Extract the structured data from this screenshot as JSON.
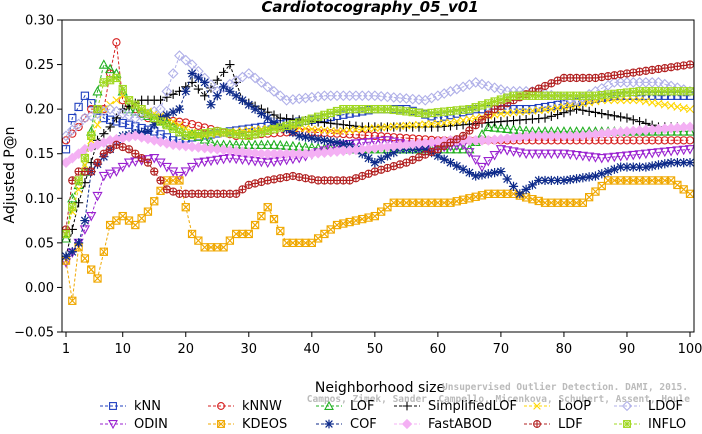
{
  "chart_data": {
    "type": "line",
    "title": "Cardiotocography_05_v01",
    "xlabel": "Neighborhood size",
    "ylabel": "Adjusted P@n",
    "xlim": [
      1,
      100
    ],
    "ylim": [
      -0.05,
      0.3
    ],
    "x_ticks": [
      1,
      10,
      20,
      30,
      40,
      50,
      60,
      70,
      80,
      90,
      100
    ],
    "y_ticks": [
      -0.05,
      0.0,
      0.05,
      0.1,
      0.15,
      0.2,
      0.25,
      0.3
    ],
    "y_tick_labels": [
      "−0.05",
      "0.00",
      "0.05",
      "0.10",
      "0.15",
      "0.20",
      "0.25",
      "0.30"
    ],
    "grid": false,
    "legend_position": "bottom",
    "credit_lines": [
      "Campos, Zimek, Sander, Campello, Micenkova, Schubert, Assent, Houle",
      "Unsupervised Outlier Detection. DAMI, 2015."
    ],
    "series": [
      {
        "name": "kNN",
        "color": "#1f3fbf",
        "marker": "square",
        "knots": [
          [
            1,
            0.155
          ],
          [
            2,
            0.19
          ],
          [
            4,
            0.215
          ],
          [
            7,
            0.19
          ],
          [
            15,
            0.175
          ],
          [
            18,
            0.165
          ],
          [
            27,
            0.175
          ],
          [
            32,
            0.18
          ],
          [
            42,
            0.19
          ],
          [
            50,
            0.2
          ],
          [
            55,
            0.2
          ],
          [
            60,
            0.19
          ],
          [
            66,
            0.2
          ],
          [
            75,
            0.2
          ],
          [
            88,
            0.215
          ],
          [
            100,
            0.215
          ]
        ]
      },
      {
        "name": "kNNW",
        "color": "#d62020",
        "marker": "circle",
        "knots": [
          [
            1,
            0.165
          ],
          [
            3,
            0.18
          ],
          [
            5,
            0.2
          ],
          [
            7,
            0.2
          ],
          [
            8,
            0.24
          ],
          [
            9,
            0.275
          ],
          [
            10,
            0.21
          ],
          [
            14,
            0.19
          ],
          [
            20,
            0.185
          ],
          [
            28,
            0.17
          ],
          [
            38,
            0.175
          ],
          [
            50,
            0.17
          ],
          [
            60,
            0.165
          ],
          [
            75,
            0.165
          ],
          [
            90,
            0.165
          ],
          [
            100,
            0.165
          ]
        ]
      },
      {
        "name": "LOF",
        "color": "#22b022",
        "marker": "triangle",
        "knots": [
          [
            1,
            0.055
          ],
          [
            2,
            0.1
          ],
          [
            4,
            0.13
          ],
          [
            6,
            0.22
          ],
          [
            7,
            0.25
          ],
          [
            9,
            0.24
          ],
          [
            11,
            0.2
          ],
          [
            15,
            0.19
          ],
          [
            20,
            0.175
          ],
          [
            25,
            0.16
          ],
          [
            34,
            0.16
          ],
          [
            44,
            0.155
          ],
          [
            55,
            0.155
          ],
          [
            65,
            0.155
          ],
          [
            68,
            0.18
          ],
          [
            75,
            0.175
          ],
          [
            85,
            0.175
          ],
          [
            100,
            0.175
          ]
        ]
      },
      {
        "name": "SimplifiedLOF",
        "color": "#000000",
        "marker": "plus",
        "knots": [
          [
            1,
            0.035
          ],
          [
            3,
            0.095
          ],
          [
            5,
            0.14
          ],
          [
            6,
            0.165
          ],
          [
            8,
            0.18
          ],
          [
            10,
            0.2
          ],
          [
            13,
            0.21
          ],
          [
            16,
            0.21
          ],
          [
            19,
            0.22
          ],
          [
            21,
            0.23
          ],
          [
            23,
            0.215
          ],
          [
            27,
            0.25
          ],
          [
            29,
            0.21
          ],
          [
            32,
            0.2
          ],
          [
            35,
            0.19
          ],
          [
            42,
            0.185
          ],
          [
            48,
            0.18
          ],
          [
            55,
            0.18
          ],
          [
            60,
            0.18
          ],
          [
            68,
            0.185
          ],
          [
            77,
            0.19
          ],
          [
            82,
            0.2
          ],
          [
            90,
            0.19
          ],
          [
            95,
            0.18
          ],
          [
            100,
            0.18
          ]
        ]
      },
      {
        "name": "LoOP",
        "color": "#ffd700",
        "marker": "x",
        "knots": [
          [
            1,
            0.06
          ],
          [
            3,
            0.11
          ],
          [
            5,
            0.165
          ],
          [
            7,
            0.2
          ],
          [
            10,
            0.215
          ],
          [
            13,
            0.2
          ],
          [
            17,
            0.19
          ],
          [
            22,
            0.17
          ],
          [
            28,
            0.175
          ],
          [
            36,
            0.18
          ],
          [
            44,
            0.175
          ],
          [
            52,
            0.18
          ],
          [
            62,
            0.185
          ],
          [
            70,
            0.195
          ],
          [
            78,
            0.2
          ],
          [
            86,
            0.21
          ],
          [
            92,
            0.21
          ],
          [
            100,
            0.2
          ]
        ]
      },
      {
        "name": "LDOF",
        "color": "#b0b0e8",
        "marker": "diamond",
        "knots": [
          [
            1,
            0.17
          ],
          [
            4,
            0.19
          ],
          [
            8,
            0.2
          ],
          [
            12,
            0.19
          ],
          [
            16,
            0.2
          ],
          [
            19,
            0.26
          ],
          [
            21,
            0.25
          ],
          [
            25,
            0.22
          ],
          [
            30,
            0.24
          ],
          [
            36,
            0.21
          ],
          [
            42,
            0.215
          ],
          [
            50,
            0.215
          ],
          [
            58,
            0.21
          ],
          [
            66,
            0.23
          ],
          [
            71,
            0.22
          ],
          [
            75,
            0.22
          ],
          [
            82,
            0.21
          ],
          [
            88,
            0.23
          ],
          [
            95,
            0.23
          ],
          [
            100,
            0.22
          ]
        ]
      },
      {
        "name": "ODIN",
        "color": "#9a22d0",
        "marker": "triangle-down",
        "knots": [
          [
            1,
            0.028
          ],
          [
            3,
            0.05
          ],
          [
            5,
            0.08
          ],
          [
            7,
            0.125
          ],
          [
            9,
            0.13
          ],
          [
            11,
            0.14
          ],
          [
            15,
            0.145
          ],
          [
            19,
            0.125
          ],
          [
            22,
            0.14
          ],
          [
            27,
            0.145
          ],
          [
            33,
            0.14
          ],
          [
            38,
            0.145
          ],
          [
            45,
            0.16
          ],
          [
            52,
            0.165
          ],
          [
            58,
            0.155
          ],
          [
            64,
            0.16
          ],
          [
            67,
            0.135
          ],
          [
            70,
            0.155
          ],
          [
            74,
            0.15
          ],
          [
            80,
            0.15
          ],
          [
            86,
            0.145
          ],
          [
            93,
            0.15
          ],
          [
            100,
            0.155
          ]
        ]
      },
      {
        "name": "KDEOS",
        "color": "#f0a800",
        "marker": "boxed-x",
        "knots": [
          [
            1,
            0.03
          ],
          [
            2,
            -0.015
          ],
          [
            3,
            0.045
          ],
          [
            5,
            0.02
          ],
          [
            6,
            0.01
          ],
          [
            8,
            0.07
          ],
          [
            10,
            0.08
          ],
          [
            12,
            0.07
          ],
          [
            14,
            0.085
          ],
          [
            17,
            0.12
          ],
          [
            19,
            0.12
          ],
          [
            21,
            0.06
          ],
          [
            23,
            0.045
          ],
          [
            26,
            0.045
          ],
          [
            28,
            0.06
          ],
          [
            30,
            0.06
          ],
          [
            33,
            0.09
          ],
          [
            36,
            0.05
          ],
          [
            40,
            0.05
          ],
          [
            44,
            0.07
          ],
          [
            50,
            0.08
          ],
          [
            53,
            0.095
          ],
          [
            57,
            0.095
          ],
          [
            62,
            0.095
          ],
          [
            68,
            0.105
          ],
          [
            72,
            0.105
          ],
          [
            77,
            0.095
          ],
          [
            83,
            0.095
          ],
          [
            87,
            0.12
          ],
          [
            92,
            0.12
          ],
          [
            97,
            0.12
          ],
          [
            100,
            0.105
          ]
        ]
      },
      {
        "name": "COF",
        "color": "#0d2a8a",
        "marker": "star",
        "knots": [
          [
            1,
            0.035
          ],
          [
            2,
            0.04
          ],
          [
            3,
            0.05
          ],
          [
            4,
            0.075
          ],
          [
            5,
            0.13
          ],
          [
            8,
            0.155
          ],
          [
            10,
            0.17
          ],
          [
            14,
            0.175
          ],
          [
            16,
            0.19
          ],
          [
            19,
            0.2
          ],
          [
            21,
            0.24
          ],
          [
            23,
            0.23
          ],
          [
            24,
            0.205
          ],
          [
            26,
            0.225
          ],
          [
            29,
            0.21
          ],
          [
            31,
            0.2
          ],
          [
            34,
            0.185
          ],
          [
            38,
            0.17
          ],
          [
            42,
            0.165
          ],
          [
            46,
            0.16
          ],
          [
            50,
            0.14
          ],
          [
            54,
            0.155
          ],
          [
            58,
            0.155
          ],
          [
            62,
            0.14
          ],
          [
            66,
            0.125
          ],
          [
            70,
            0.13
          ],
          [
            73,
            0.105
          ],
          [
            76,
            0.12
          ],
          [
            80,
            0.12
          ],
          [
            85,
            0.125
          ],
          [
            89,
            0.135
          ],
          [
            93,
            0.135
          ],
          [
            97,
            0.14
          ],
          [
            100,
            0.14
          ]
        ]
      },
      {
        "name": "FastABOD",
        "color": "#f4b0f4",
        "marker": "diamond-filled",
        "knots": [
          [
            1,
            0.14
          ],
          [
            4,
            0.155
          ],
          [
            8,
            0.165
          ],
          [
            12,
            0.17
          ],
          [
            18,
            0.16
          ],
          [
            25,
            0.155
          ],
          [
            32,
            0.15
          ],
          [
            40,
            0.15
          ],
          [
            48,
            0.155
          ],
          [
            55,
            0.16
          ],
          [
            62,
            0.165
          ],
          [
            68,
            0.165
          ],
          [
            75,
            0.17
          ],
          [
            82,
            0.17
          ],
          [
            90,
            0.175
          ],
          [
            100,
            0.18
          ]
        ]
      },
      {
        "name": "LDF",
        "color": "#b22020",
        "marker": "circle-plus",
        "knots": [
          [
            1,
            0.065
          ],
          [
            2,
            0.12
          ],
          [
            3,
            0.13
          ],
          [
            5,
            0.13
          ],
          [
            7,
            0.15
          ],
          [
            9,
            0.16
          ],
          [
            11,
            0.155
          ],
          [
            14,
            0.14
          ],
          [
            17,
            0.11
          ],
          [
            19,
            0.105
          ],
          [
            24,
            0.105
          ],
          [
            28,
            0.105
          ],
          [
            30,
            0.115
          ],
          [
            33,
            0.12
          ],
          [
            37,
            0.125
          ],
          [
            41,
            0.12
          ],
          [
            46,
            0.12
          ],
          [
            50,
            0.13
          ],
          [
            55,
            0.14
          ],
          [
            60,
            0.155
          ],
          [
            64,
            0.17
          ],
          [
            69,
            0.2
          ],
          [
            75,
            0.22
          ],
          [
            80,
            0.235
          ],
          [
            85,
            0.235
          ],
          [
            90,
            0.24
          ],
          [
            95,
            0.245
          ],
          [
            100,
            0.25
          ]
        ]
      },
      {
        "name": "INFLO",
        "color": "#a0d820",
        "marker": "boxed-star",
        "knots": [
          [
            1,
            0.06
          ],
          [
            3,
            0.12
          ],
          [
            5,
            0.17
          ],
          [
            7,
            0.23
          ],
          [
            9,
            0.235
          ],
          [
            11,
            0.21
          ],
          [
            15,
            0.19
          ],
          [
            20,
            0.17
          ],
          [
            25,
            0.175
          ],
          [
            30,
            0.17
          ],
          [
            38,
            0.185
          ],
          [
            45,
            0.2
          ],
          [
            52,
            0.2
          ],
          [
            58,
            0.195
          ],
          [
            65,
            0.2
          ],
          [
            72,
            0.215
          ],
          [
            78,
            0.215
          ],
          [
            85,
            0.215
          ],
          [
            92,
            0.22
          ],
          [
            100,
            0.22
          ]
        ]
      }
    ]
  }
}
